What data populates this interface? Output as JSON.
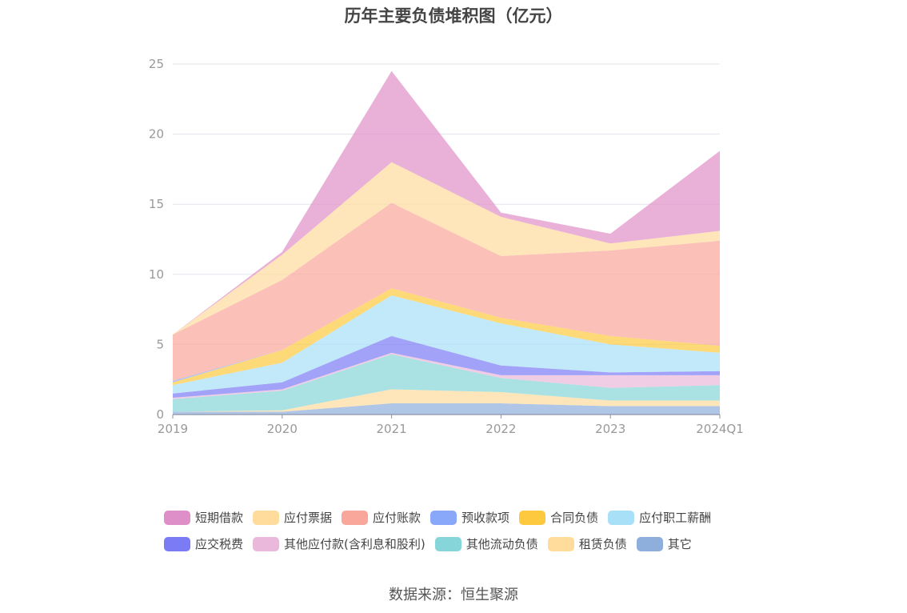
{
  "title": "历年主要负债堆积图（亿元）",
  "source": "数据来源：恒生聚源",
  "chart_data": {
    "type": "area",
    "stacked": true,
    "title": "历年主要负债堆积图（亿元）",
    "x": [
      "2019",
      "2020",
      "2021",
      "2022",
      "2023",
      "2024Q1"
    ],
    "ylim": [
      0,
      25
    ],
    "yticks": [
      0,
      5,
      10,
      15,
      20,
      25
    ],
    "grid": true,
    "legend_position": "bottom",
    "series": [
      {
        "name": "其它",
        "color": "#8eaedb",
        "values": [
          0.2,
          0.2,
          0.8,
          0.8,
          0.6,
          0.6
        ]
      },
      {
        "name": "租赁负债",
        "color": "#ffdc9c",
        "values": [
          0.0,
          0.1,
          1.0,
          0.8,
          0.4,
          0.4
        ]
      },
      {
        "name": "其他流动负债",
        "color": "#86d6d9",
        "values": [
          0.9,
          1.4,
          2.5,
          1.0,
          0.9,
          1.1
        ]
      },
      {
        "name": "其他应付款(含利息和股利)",
        "color": "#eab8da",
        "values": [
          0.1,
          0.1,
          0.1,
          0.2,
          0.9,
          0.7
        ]
      },
      {
        "name": "应交税费",
        "color": "#7b7cf5",
        "values": [
          0.3,
          0.5,
          1.2,
          0.7,
          0.2,
          0.3
        ]
      },
      {
        "name": "应付职工薪酬",
        "color": "#a8e0f8",
        "values": [
          0.6,
          1.4,
          2.9,
          3.0,
          2.0,
          1.3
        ]
      },
      {
        "name": "合同负债",
        "color": "#fdc93e",
        "values": [
          0.2,
          0.9,
          0.5,
          0.4,
          0.6,
          0.5
        ]
      },
      {
        "name": "预收款项",
        "color": "#89a8fa",
        "values": [
          0.1,
          0.0,
          0.0,
          0.0,
          0.0,
          0.0
        ]
      },
      {
        "name": "应付账款",
        "color": "#f9a69b",
        "values": [
          3.3,
          5.0,
          6.1,
          4.4,
          6.1,
          7.5
        ]
      },
      {
        "name": "应付票据",
        "color": "#ffdc9c",
        "values": [
          0.0,
          1.8,
          2.9,
          2.8,
          0.5,
          0.7
        ]
      },
      {
        "name": "短期借款",
        "color": "#df8fc7",
        "values": [
          0.0,
          0.2,
          6.5,
          0.3,
          0.7,
          5.7
        ]
      }
    ],
    "legend_order": [
      "短期借款",
      "应付票据",
      "应付账款",
      "预收款项",
      "合同负债",
      "应付职工薪酬",
      "应交税费",
      "其他应付款(含利息和股利)",
      "其他流动负债",
      "租赁负债",
      "其它"
    ]
  }
}
